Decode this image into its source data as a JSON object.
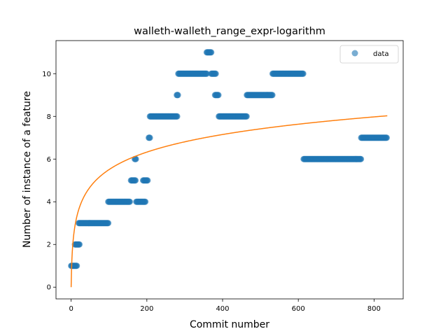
{
  "chart_data": {
    "type": "scatter",
    "title": "walleth-walleth_range_expr-logarithm",
    "xlabel": "Commit number",
    "ylabel": "Number of instance of a feature",
    "xlim": [
      -40,
      877
    ],
    "ylim": [
      -0.55,
      11.55
    ],
    "xticks": [
      0,
      200,
      400,
      600,
      800
    ],
    "yticks": [
      0,
      2,
      4,
      6,
      8,
      10
    ],
    "grid": false,
    "legend_position": "top-right",
    "colors": {
      "data": "#1f77b4",
      "fit": "#ff7f0e"
    },
    "series": [
      {
        "name": "data",
        "kind": "scatter",
        "segments": [
          {
            "x_start": 0,
            "x_end": 15,
            "y": 1
          },
          {
            "x_start": 10,
            "x_end": 22,
            "y": 2
          },
          {
            "x_start": 20,
            "x_end": 98,
            "y": 3
          },
          {
            "x_start": 98,
            "x_end": 155,
            "y": 4
          },
          {
            "x_start": 158,
            "x_end": 170,
            "y": 5
          },
          {
            "x_start": 168,
            "x_end": 172,
            "y": 6
          },
          {
            "x_start": 172,
            "x_end": 196,
            "y": 4
          },
          {
            "x_start": 190,
            "x_end": 203,
            "y": 5
          },
          {
            "x_start": 205,
            "x_end": 208,
            "y": 7
          },
          {
            "x_start": 208,
            "x_end": 280,
            "y": 8
          },
          {
            "x_start": 279,
            "x_end": 282,
            "y": 9
          },
          {
            "x_start": 283,
            "x_end": 358,
            "y": 10
          },
          {
            "x_start": 358,
            "x_end": 370,
            "y": 11
          },
          {
            "x_start": 370,
            "x_end": 382,
            "y": 10
          },
          {
            "x_start": 380,
            "x_end": 390,
            "y": 9
          },
          {
            "x_start": 390,
            "x_end": 464,
            "y": 8
          },
          {
            "x_start": 464,
            "x_end": 532,
            "y": 9
          },
          {
            "x_start": 532,
            "x_end": 614,
            "y": 10
          },
          {
            "x_start": 614,
            "x_end": 766,
            "y": 6
          },
          {
            "x_start": 766,
            "x_end": 834,
            "y": 7
          }
        ]
      },
      {
        "name": "",
        "kind": "line",
        "formula": "y = 1.193 * ln(x + 1)",
        "coefficient": 1.193,
        "x_range": [
          0,
          835
        ]
      }
    ]
  }
}
